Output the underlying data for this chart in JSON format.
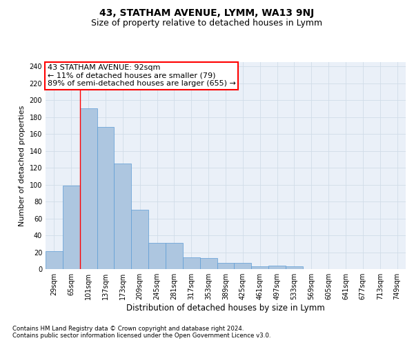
{
  "title": "43, STATHAM AVENUE, LYMM, WA13 9NJ",
  "subtitle": "Size of property relative to detached houses in Lymm",
  "xlabel": "Distribution of detached houses by size in Lymm",
  "ylabel": "Number of detached properties",
  "footnote1": "Contains HM Land Registry data © Crown copyright and database right 2024.",
  "footnote2": "Contains public sector information licensed under the Open Government Licence v3.0.",
  "bar_labels": [
    "29sqm",
    "65sqm",
    "101sqm",
    "137sqm",
    "173sqm",
    "209sqm",
    "245sqm",
    "281sqm",
    "317sqm",
    "353sqm",
    "389sqm",
    "425sqm",
    "461sqm",
    "497sqm",
    "533sqm",
    "569sqm",
    "605sqm",
    "641sqm",
    "677sqm",
    "713sqm",
    "749sqm"
  ],
  "bar_values": [
    21,
    99,
    190,
    168,
    125,
    70,
    31,
    31,
    14,
    13,
    7,
    7,
    3,
    4,
    3,
    0,
    0,
    0,
    0,
    0,
    0
  ],
  "bar_color": "#adc6e0",
  "bar_edge_color": "#5b9bd5",
  "grid_color": "#d0dce8",
  "background_color": "#eaf0f8",
  "annotation_text": "43 STATHAM AVENUE: 92sqm\n← 11% of detached houses are smaller (79)\n89% of semi-detached houses are larger (655) →",
  "annotation_box_color": "white",
  "annotation_box_edge_color": "red",
  "vline_x": 1.5,
  "vline_color": "red",
  "ylim": [
    0,
    245
  ],
  "yticks": [
    0,
    20,
    40,
    60,
    80,
    100,
    120,
    140,
    160,
    180,
    200,
    220,
    240
  ],
  "title_fontsize": 10,
  "subtitle_fontsize": 9,
  "annotation_fontsize": 8,
  "ylabel_fontsize": 8,
  "xlabel_fontsize": 8.5,
  "tick_fontsize": 7
}
